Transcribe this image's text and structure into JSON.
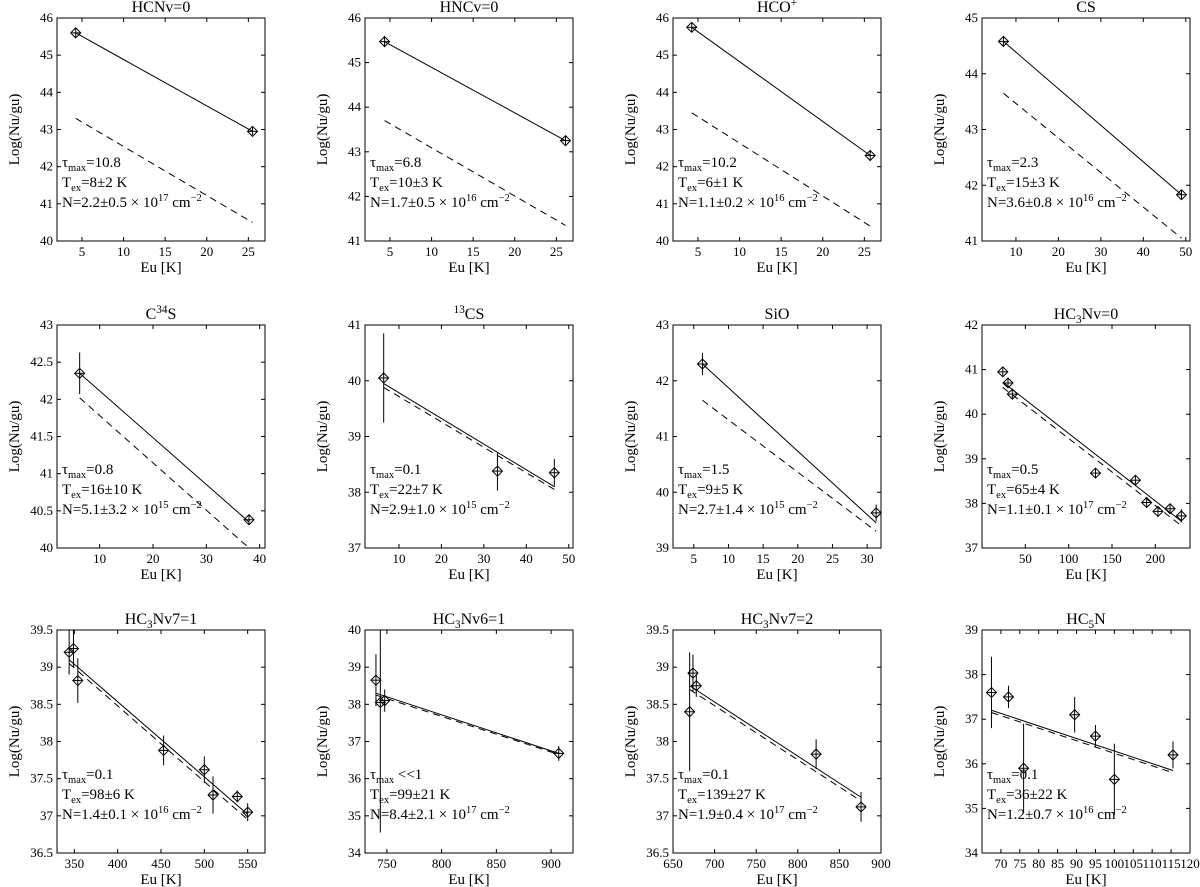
{
  "chart_data": [
    {
      "type": "scatter",
      "title": "HCNv=0",
      "xlabel": "Eu [K]",
      "ylabel": "Log(Nu/gu)",
      "xlim": [
        2,
        27
      ],
      "ylim": [
        40,
        46
      ],
      "xticks": [
        5,
        10,
        15,
        20,
        25
      ],
      "yticks": [
        40,
        41,
        42,
        43,
        44,
        45,
        46
      ],
      "points": [
        {
          "x": 4.25,
          "y": 45.6,
          "err": 0.12
        },
        {
          "x": 25.5,
          "y": 42.95,
          "err": 0.1
        }
      ],
      "fit_solid": [
        [
          4.25,
          45.6
        ],
        [
          25.5,
          42.95
        ]
      ],
      "fit_dashed": [
        [
          4.25,
          43.3
        ],
        [
          25.5,
          40.5
        ]
      ],
      "annotations": [
        "τmax=10.8",
        "Tex=8±2 K",
        "N=2.2±0.5 × 1017 cm−2"
      ]
    },
    {
      "type": "scatter",
      "title": "HNCv=0",
      "xlabel": "Eu [K]",
      "ylabel": "Log(Nu/gu)",
      "xlim": [
        2,
        27
      ],
      "ylim": [
        41,
        46
      ],
      "xticks": [
        5,
        10,
        15,
        20,
        25
      ],
      "yticks": [
        41,
        42,
        43,
        44,
        45,
        46
      ],
      "points": [
        {
          "x": 4.35,
          "y": 45.47,
          "err": 0.12
        },
        {
          "x": 26.1,
          "y": 43.25,
          "err": 0.1
        }
      ],
      "fit_solid": [
        [
          4.35,
          45.47
        ],
        [
          26.1,
          43.25
        ]
      ],
      "fit_dashed": [
        [
          4.35,
          43.7
        ],
        [
          26.1,
          41.35
        ]
      ],
      "annotations": [
        "τmax=6.8",
        "Tex=10±3 K",
        "N=1.7±0.5 × 1016 cm−2"
      ]
    },
    {
      "type": "scatter",
      "title": "HCO+",
      "xlabel": "Eu [K]",
      "ylabel": "Log(Nu/gu)",
      "xlim": [
        2,
        27
      ],
      "ylim": [
        40,
        46
      ],
      "xticks": [
        5,
        10,
        15,
        20,
        25
      ],
      "yticks": [
        40,
        41,
        42,
        43,
        44,
        45,
        46
      ],
      "points": [
        {
          "x": 4.25,
          "y": 45.75,
          "err": 0.12
        },
        {
          "x": 25.7,
          "y": 42.3,
          "err": 0.12
        }
      ],
      "fit_solid": [
        [
          4.25,
          45.75
        ],
        [
          25.7,
          42.3
        ]
      ],
      "fit_dashed": [
        [
          4.25,
          43.45
        ],
        [
          25.7,
          40.4
        ]
      ],
      "annotations": [
        "τmax=10.2",
        "Tex=6±1 K",
        "N=1.1±0.2 × 1016 cm−2"
      ]
    },
    {
      "type": "scatter",
      "title": "CS",
      "xlabel": "Eu [K]",
      "ylabel": "Log(Nu/gu)",
      "xlim": [
        2,
        51
      ],
      "ylim": [
        41,
        45
      ],
      "xticks": [
        10,
        20,
        30,
        40,
        50
      ],
      "yticks": [
        41,
        42,
        43,
        44,
        45
      ],
      "points": [
        {
          "x": 7.05,
          "y": 44.58,
          "err": 0.08
        },
        {
          "x": 49.0,
          "y": 41.83,
          "err": 0.08
        }
      ],
      "fit_solid": [
        [
          7.05,
          44.58
        ],
        [
          49.0,
          41.83
        ]
      ],
      "fit_dashed": [
        [
          7.05,
          43.65
        ],
        [
          49.0,
          41.05
        ]
      ],
      "annotations": [
        "τmax=2.3",
        "Tex=15±3 K",
        "N=3.6±0.8 × 1016 cm−2"
      ]
    },
    {
      "type": "scatter",
      "title": "C34S",
      "xlabel": "Eu [K]",
      "ylabel": "Log(Nu/gu)",
      "xlim": [
        2,
        41
      ],
      "ylim": [
        40,
        43
      ],
      "xticks": [
        10,
        20,
        30,
        40
      ],
      "yticks": [
        40,
        40.5,
        41,
        41.5,
        42,
        42.5,
        43
      ],
      "points": [
        {
          "x": 6.25,
          "y": 42.35,
          "err": 0.28
        },
        {
          "x": 38.0,
          "y": 40.38,
          "err": 0.07
        }
      ],
      "fit_solid": [
        [
          6.25,
          42.35
        ],
        [
          38.0,
          40.35
        ]
      ],
      "fit_dashed": [
        [
          6.25,
          42.02
        ],
        [
          38.0,
          40.0
        ]
      ],
      "annotations": [
        "τmax=0.8",
        "Tex=16±10 K",
        "N=5.1±3.2 × 1015 cm−2"
      ]
    },
    {
      "type": "scatter",
      "title": "13CS",
      "xlabel": "Eu [K]",
      "ylabel": "Log(Nu/gu)",
      "xlim": [
        2,
        51
      ],
      "ylim": [
        37,
        41
      ],
      "xticks": [
        10,
        20,
        30,
        40,
        50
      ],
      "yticks": [
        37,
        38,
        39,
        40,
        41
      ],
      "points": [
        {
          "x": 6.4,
          "y": 40.05,
          "err": 0.8
        },
        {
          "x": 33.2,
          "y": 38.38,
          "err": 0.35
        },
        {
          "x": 46.6,
          "y": 38.35,
          "err": 0.25
        }
      ],
      "fit_solid": [
        [
          6.4,
          39.95
        ],
        [
          46.6,
          38.1
        ]
      ],
      "fit_dashed": [
        [
          6.4,
          39.88
        ],
        [
          46.6,
          38.05
        ]
      ],
      "annotations": [
        "τmax=0.1",
        "Tex=22±7 K",
        "N=2.9±1.0 × 1015 cm−2"
      ]
    },
    {
      "type": "scatter",
      "title": "SiO",
      "xlabel": "Eu [K]",
      "ylabel": "Log(Nu/gu)",
      "xlim": [
        2,
        32
      ],
      "ylim": [
        39,
        43
      ],
      "xticks": [
        5,
        10,
        15,
        20,
        25,
        30
      ],
      "yticks": [
        39,
        40,
        41,
        42,
        43
      ],
      "points": [
        {
          "x": 6.25,
          "y": 42.3,
          "err": 0.2
        },
        {
          "x": 31.3,
          "y": 39.63,
          "err": 0.15
        }
      ],
      "fit_solid": [
        [
          6.25,
          42.3
        ],
        [
          31.3,
          39.45
        ]
      ],
      "fit_dashed": [
        [
          6.25,
          41.65
        ],
        [
          31.3,
          39.3
        ]
      ],
      "annotations": [
        "τmax=1.5",
        "Tex=9±5 K",
        "N=2.7±1.4 × 1015 cm−2"
      ]
    },
    {
      "type": "scatter",
      "title": "HC3Nv=0",
      "xlabel": "Eu [K]",
      "ylabel": "Log(Nu/gu)",
      "xlim": [
        0,
        240
      ],
      "ylim": [
        37,
        42
      ],
      "xticks": [
        50,
        100,
        150,
        200
      ],
      "yticks": [
        37,
        38,
        39,
        40,
        41,
        42
      ],
      "points": [
        {
          "x": 24,
          "y": 40.95,
          "err": 0.1
        },
        {
          "x": 30,
          "y": 40.7,
          "err": 0.1
        },
        {
          "x": 35,
          "y": 40.45,
          "err": 0.1
        },
        {
          "x": 131,
          "y": 38.68,
          "err": 0.1
        },
        {
          "x": 177,
          "y": 38.52,
          "err": 0.1
        },
        {
          "x": 190,
          "y": 38.02,
          "err": 0.1
        },
        {
          "x": 203,
          "y": 37.82,
          "err": 0.1
        },
        {
          "x": 217,
          "y": 37.88,
          "err": 0.1
        },
        {
          "x": 230,
          "y": 37.72,
          "err": 0.15
        }
      ],
      "fit_solid": [
        [
          24,
          40.72
        ],
        [
          230,
          37.6
        ]
      ],
      "fit_dashed": [
        [
          24,
          40.6
        ],
        [
          230,
          37.5
        ]
      ],
      "annotations": [
        "τmax=0.5",
        "Tex=65±4 K",
        "N=1.1±0.1 × 1017 cm−2"
      ]
    },
    {
      "type": "scatter",
      "title": "HC3Nv7=1",
      "xlabel": "Eu [K]",
      "ylabel": "Log(Nu/gu)",
      "xlim": [
        330,
        570
      ],
      "ylim": [
        36.5,
        39.5
      ],
      "xticks": [
        350,
        400,
        450,
        500,
        550
      ],
      "yticks": [
        36.5,
        37,
        37.5,
        38,
        38.5,
        39,
        39.5
      ],
      "points": [
        {
          "x": 344,
          "y": 39.2,
          "err": 0.3
        },
        {
          "x": 349,
          "y": 39.25,
          "err": 0.25
        },
        {
          "x": 354,
          "y": 38.82,
          "err": 0.3
        },
        {
          "x": 453,
          "y": 37.88,
          "err": 0.2
        },
        {
          "x": 500,
          "y": 37.62,
          "err": 0.18
        },
        {
          "x": 510,
          "y": 37.28,
          "err": 0.25
        },
        {
          "x": 538,
          "y": 37.26,
          "err": 0.08
        },
        {
          "x": 550,
          "y": 37.05,
          "err": 0.12
        }
      ],
      "fit_solid": [
        [
          344,
          39.1
        ],
        [
          550,
          37.02
        ]
      ],
      "fit_dashed": [
        [
          344,
          39.05
        ],
        [
          550,
          36.95
        ]
      ],
      "annotations": [
        "τmax=0.1",
        "Tex=98±6 K",
        "N=1.4±0.1 × 1016 cm−2"
      ]
    },
    {
      "type": "scatter",
      "title": "HC3Nv6=1",
      "xlabel": "Eu [K]",
      "ylabel": "Log(Nu/gu)",
      "xlim": [
        730,
        920
      ],
      "ylim": [
        34,
        40
      ],
      "xticks": [
        750,
        800,
        850,
        900
      ],
      "yticks": [
        34,
        35,
        36,
        37,
        38,
        39,
        40
      ],
      "points": [
        {
          "x": 740,
          "y": 38.65,
          "err": 0.7
        },
        {
          "x": 744,
          "y": 38.05,
          "err": 3.5
        },
        {
          "x": 748,
          "y": 38.1,
          "err": 0.3
        },
        {
          "x": 907,
          "y": 36.68,
          "err": 0.2
        }
      ],
      "fit_solid": [
        [
          740,
          38.3
        ],
        [
          907,
          36.68
        ]
      ],
      "fit_dashed": [
        [
          740,
          38.25
        ],
        [
          907,
          36.65
        ]
      ],
      "annotations": [
        "τmax <<1",
        "Tex=99±21 K",
        "N=8.4±2.1 × 1017 cm−2"
      ]
    },
    {
      "type": "scatter",
      "title": "HC3Nv7=2",
      "xlabel": "Eu [K]",
      "ylabel": "Log(Nu/gu)",
      "xlim": [
        650,
        900
      ],
      "ylim": [
        36.5,
        39.5
      ],
      "xticks": [
        650,
        700,
        750,
        800,
        850,
        900
      ],
      "yticks": [
        36.5,
        37,
        37.5,
        38,
        38.5,
        39,
        39.5
      ],
      "points": [
        {
          "x": 670,
          "y": 38.4,
          "err": 0.8
        },
        {
          "x": 674,
          "y": 38.92,
          "err": 0.25
        },
        {
          "x": 678,
          "y": 38.75,
          "err": 0.15
        },
        {
          "x": 822,
          "y": 37.83,
          "err": 0.2
        },
        {
          "x": 876,
          "y": 37.12,
          "err": 0.2
        }
      ],
      "fit_solid": [
        [
          670,
          38.75
        ],
        [
          876,
          37.25
        ]
      ],
      "fit_dashed": [
        [
          670,
          38.7
        ],
        [
          876,
          37.2
        ]
      ],
      "annotations": [
        "τmax=0.1",
        "Tex=139±27 K",
        "N=1.9±0.4 × 1017 cm−2"
      ]
    },
    {
      "type": "scatter",
      "title": "HC5N",
      "xlabel": "Eu [K]",
      "ylabel": "Log(Nu/gu)",
      "xlim": [
        65,
        120
      ],
      "ylim": [
        34,
        39
      ],
      "xticks": [
        70,
        75,
        80,
        85,
        90,
        95,
        100,
        105,
        110,
        115,
        120
      ],
      "yticks": [
        34,
        35,
        36,
        37,
        38,
        39
      ],
      "points": [
        {
          "x": 67.5,
          "y": 37.6,
          "err": 0.8
        },
        {
          "x": 72,
          "y": 37.5,
          "err": 0.25
        },
        {
          "x": 76,
          "y": 35.9,
          "err": 1.0
        },
        {
          "x": 89.5,
          "y": 37.1,
          "err": 0.4
        },
        {
          "x": 95,
          "y": 36.62,
          "err": 0.25
        },
        {
          "x": 100,
          "y": 35.65,
          "err": 0.8
        },
        {
          "x": 115.5,
          "y": 36.2,
          "err": 0.3
        }
      ],
      "fit_solid": [
        [
          67.5,
          37.2
        ],
        [
          115.5,
          35.85
        ]
      ],
      "fit_dashed": [
        [
          67.5,
          37.15
        ],
        [
          115.5,
          35.8
        ]
      ],
      "annotations": [
        "τmax=0.1",
        "Tex=36±22 K",
        "N=1.2±0.7 × 1016 cm−2"
      ]
    }
  ]
}
